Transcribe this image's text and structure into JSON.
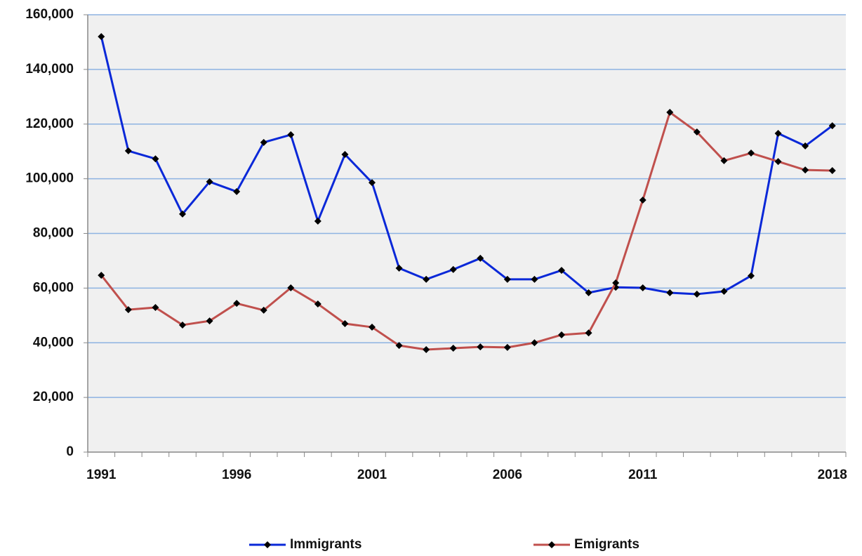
{
  "chart_data": {
    "type": "line",
    "categories": [
      "1991",
      null,
      null,
      null,
      null,
      "1996",
      null,
      null,
      null,
      null,
      "2001",
      null,
      null,
      null,
      null,
      "2006",
      null,
      null,
      null,
      null,
      "2011",
      null,
      null,
      null,
      null,
      null,
      null,
      "2018"
    ],
    "series": [
      {
        "name": "Immigrants",
        "color": "#0a28d8",
        "values": [
          152000,
          110200,
          107300,
          87100,
          98900,
          95300,
          113300,
          116100,
          84500,
          108900,
          98600,
          67300,
          63200,
          66800,
          70900,
          63200,
          63200,
          66500,
          58300,
          60300,
          60100,
          58300,
          57800,
          58800,
          64500,
          116600,
          112000,
          119400
        ]
      },
      {
        "name": "Emigrants",
        "color": "#c0504d",
        "values": [
          64700,
          52100,
          52900,
          46500,
          48000,
          54400,
          51900,
          60100,
          54200,
          47000,
          45700,
          39000,
          37500,
          38000,
          38500,
          38300,
          40000,
          42900,
          43600,
          61900,
          92200,
          124300,
          117100,
          106600,
          109400,
          106300,
          103200,
          103000
        ]
      }
    ],
    "ylim": [
      0,
      160000
    ],
    "yticks": [
      0,
      {
        "value": 20000,
        "label": "20,000"
      },
      {
        "value": 40000,
        "label": "40,000"
      },
      {
        "value": 60000,
        "label": "60,000"
      },
      {
        "value": 80000,
        "label": "80,000"
      },
      {
        "value": 100000,
        "label": "100,000"
      },
      {
        "value": 120000,
        "label": "120,000"
      },
      {
        "value": 140000,
        "label": "140,000"
      },
      {
        "value": 160000,
        "label": "160,000"
      }
    ],
    "grid": true,
    "legend": "bottom"
  }
}
